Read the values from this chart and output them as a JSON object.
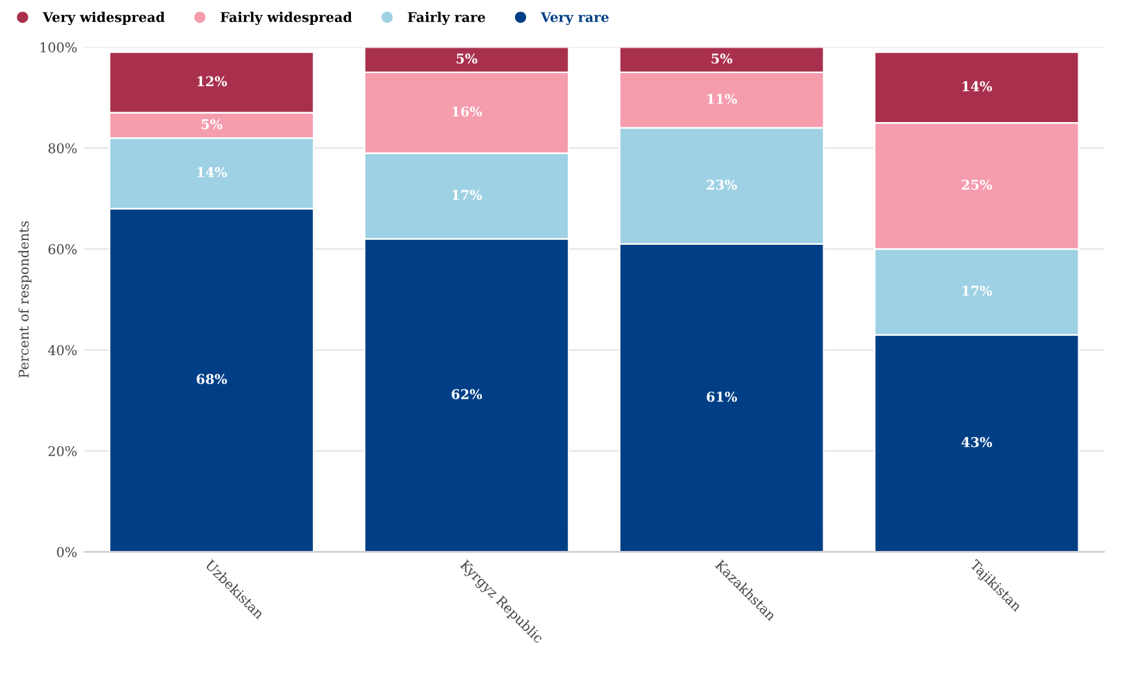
{
  "chart_data": {
    "type": "bar",
    "stacked": true,
    "ylabel": "Percent of respondents",
    "categories": [
      "Uzbekistan",
      "Kyrgyz Republic",
      "Kazakhstan",
      "Tajikistan"
    ],
    "series": [
      {
        "name": "Very rare",
        "color": "#003f86",
        "values": [
          68,
          62,
          61,
          43
        ],
        "value_labels": [
          "68%",
          "62%",
          "61%",
          "43%"
        ]
      },
      {
        "name": "Fairly rare",
        "color": "#9fd1e4",
        "values": [
          14,
          17,
          23,
          17
        ],
        "value_labels": [
          "14%",
          "17%",
          "23%",
          "17%"
        ]
      },
      {
        "name": "Fairly widespread",
        "color": "#f59cad",
        "values": [
          5,
          16,
          11,
          25
        ],
        "value_labels": [
          "5%",
          "16%",
          "11%",
          "25%"
        ]
      },
      {
        "name": "Very widespread",
        "color": "#a9304c",
        "values": [
          12,
          5,
          5,
          14
        ],
        "value_labels": [
          "12%",
          "5%",
          "5%",
          "14%"
        ]
      }
    ],
    "ylim": [
      0,
      100
    ],
    "yticks": [
      {
        "value": 0,
        "label": "0%"
      },
      {
        "value": 20,
        "label": "20%"
      },
      {
        "value": 40,
        "label": "40%"
      },
      {
        "value": 60,
        "label": "60%"
      },
      {
        "value": 80,
        "label": "80%"
      },
      {
        "value": 100,
        "label": "100%"
      }
    ],
    "grid": "y",
    "legend": "top left"
  }
}
